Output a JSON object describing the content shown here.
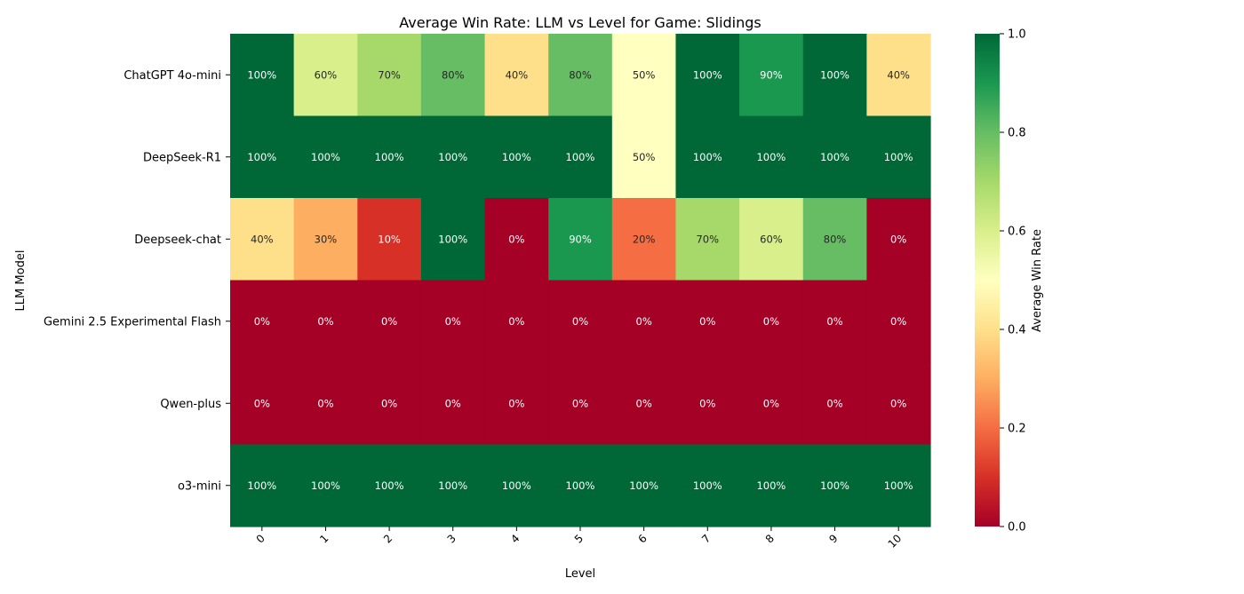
{
  "chart_data": {
    "type": "heatmap",
    "title": "Average Win Rate: LLM vs Level for Game: Slidings",
    "xlabel": "Level",
    "ylabel": "LLM Model",
    "x": [
      "0",
      "1",
      "2",
      "3",
      "4",
      "5",
      "6",
      "7",
      "8",
      "9",
      "10"
    ],
    "y": [
      "ChatGPT 4o-mini",
      "DeepSeek-R1",
      "Deepseek-chat",
      "Gemini 2.5 Experimental Flash",
      "Qwen-plus",
      "o3-mini"
    ],
    "values": [
      [
        1.0,
        0.6,
        0.7,
        0.8,
        0.4,
        0.8,
        0.5,
        1.0,
        0.9,
        1.0,
        0.4
      ],
      [
        1.0,
        1.0,
        1.0,
        1.0,
        1.0,
        1.0,
        0.5,
        1.0,
        1.0,
        1.0,
        1.0
      ],
      [
        0.4,
        0.3,
        0.1,
        1.0,
        0.0,
        0.9,
        0.2,
        0.7,
        0.6,
        0.8,
        0.0
      ],
      [
        0,
        0,
        0,
        0,
        0,
        0,
        0,
        0,
        0,
        0,
        0
      ],
      [
        0,
        0,
        0,
        0,
        0,
        0,
        0,
        0,
        0,
        0,
        0
      ],
      [
        1.0,
        1.0,
        1.0,
        1.0,
        1.0,
        1.0,
        1.0,
        1.0,
        1.0,
        1.0,
        1.0
      ]
    ],
    "value_format": "percent",
    "colormap": "RdYlGn",
    "vmin": 0.0,
    "vmax": 1.0,
    "colorbar": {
      "label": "Average Win Rate",
      "ticks": [
        0.0,
        0.2,
        0.4,
        0.6,
        0.8,
        1.0
      ],
      "tick_labels": [
        "0.0",
        "0.2",
        "0.4",
        "0.6",
        "0.8",
        "1.0"
      ]
    }
  }
}
